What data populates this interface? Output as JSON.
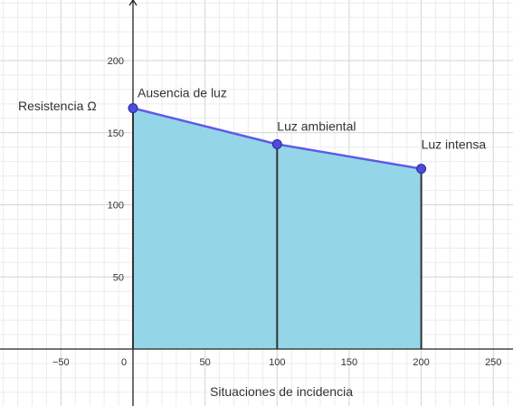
{
  "chart_data": {
    "type": "area",
    "title": "",
    "xlabel": "Situaciones de incidencia",
    "ylabel": "Resistencia Ω",
    "xlim": [
      -90,
      262
    ],
    "ylim": [
      -35,
      240
    ],
    "grid": true,
    "x_ticks": [
      -50,
      0,
      50,
      100,
      150,
      200,
      250
    ],
    "x_tick_labels": [
      "−50",
      "0",
      "50",
      "100",
      "150",
      "200",
      "250"
    ],
    "y_ticks": [
      50,
      100,
      150,
      200
    ],
    "y_tick_labels": [
      "50",
      "100",
      "150",
      "200"
    ],
    "series": [
      {
        "x": [
          0,
          100,
          200
        ],
        "y": [
          167,
          142,
          125
        ],
        "point_labels": [
          "Ausencia de luz",
          "Luz ambiental",
          "Luz intensa"
        ],
        "line_color": "#5c5ce6",
        "point_color": "#4b4bdc",
        "fill_color": "#94d6e8"
      }
    ]
  }
}
